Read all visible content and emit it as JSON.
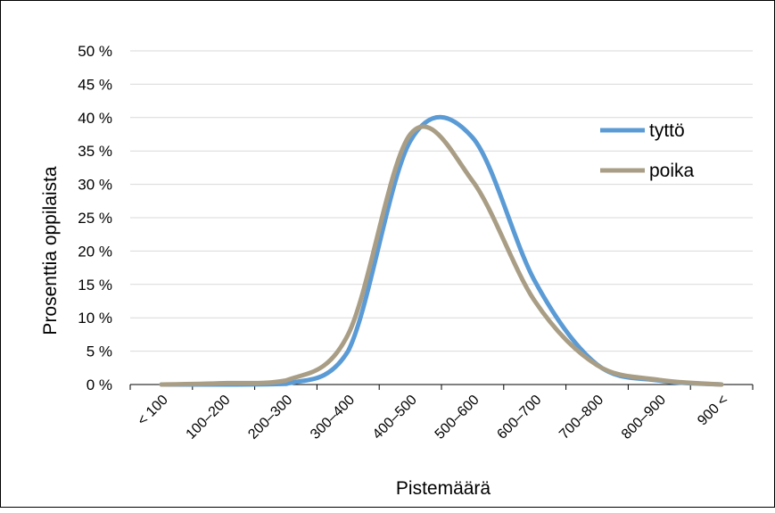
{
  "chart_data": {
    "type": "line",
    "categories": [
      "< 100",
      "100–200",
      "200–300",
      "300–400",
      "400–500",
      "500–600",
      "600–700",
      "700–800",
      "800–900",
      "900 <"
    ],
    "xlabel": "Pistemäärä",
    "ylabel": "Prosenttia oppilaista",
    "ylim": [
      0,
      50
    ],
    "yticks": [
      "0 %",
      "5 %",
      "10 %",
      "15 %",
      "20 %",
      "25 %",
      "30 %",
      "35 %",
      "40 %",
      "45 %",
      "50 %"
    ],
    "grid": true,
    "legend": "right",
    "series": [
      {
        "name": "tyttö",
        "color": "#5B9BD5",
        "values": [
          0.0,
          0.0,
          0.1,
          5.0,
          36.5,
          37.0,
          15.5,
          3.0,
          0.6,
          0.0
        ]
      },
      {
        "name": "poika",
        "color": "#A99E85",
        "values": [
          0.0,
          0.2,
          0.6,
          7.5,
          37.5,
          30.5,
          12.5,
          2.9,
          0.7,
          0.0
        ]
      }
    ]
  }
}
